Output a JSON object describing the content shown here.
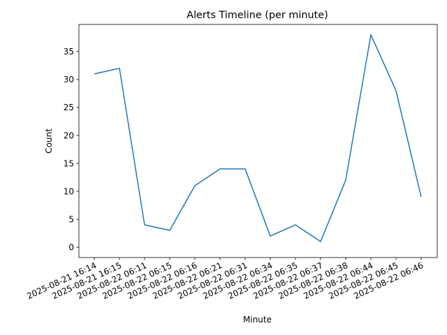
{
  "chart_data": {
    "type": "line",
    "title": "Alerts Timeline (per minute)",
    "xlabel": "Minute",
    "ylabel": "Count",
    "categories": [
      "2025-08-21 16:14",
      "2025-08-21 16:15",
      "2025-08-22 06:11",
      "2025-08-22 06:15",
      "2025-08-22 06:16",
      "2025-08-22 06:21",
      "2025-08-22 06:31",
      "2025-08-22 06:34",
      "2025-08-22 06:35",
      "2025-08-22 06:37",
      "2025-08-22 06:38",
      "2025-08-22 06:44",
      "2025-08-22 06:45",
      "2025-08-22 06:46"
    ],
    "values": [
      31,
      32,
      4,
      3,
      11,
      14,
      14,
      2,
      4,
      1,
      12,
      38,
      28,
      9
    ],
    "yticks": [
      0,
      5,
      10,
      15,
      20,
      25,
      30,
      35
    ],
    "ylim": [
      -1.85,
      39.85
    ],
    "grid": false,
    "line_color": "#1f77b4"
  }
}
